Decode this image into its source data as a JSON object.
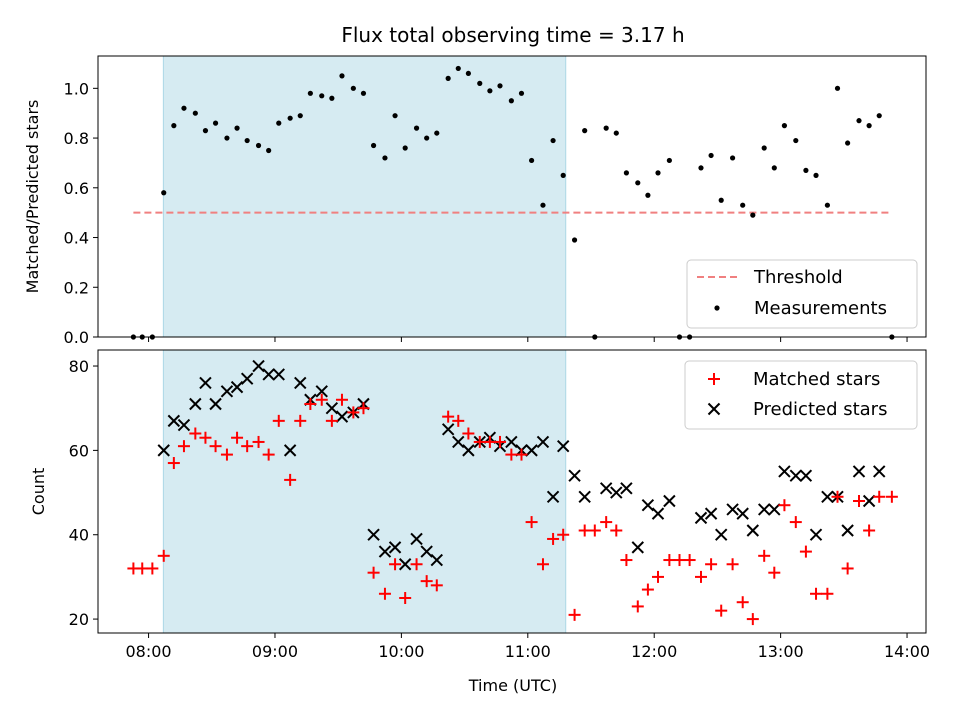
{
  "title": "Flux total observing time = 3.17 h",
  "colors": {
    "shade": "#add8e6",
    "threshold": "#f08080",
    "matched": "#ff0000",
    "predicted": "#000000",
    "measurements": "#000000"
  },
  "chart_data": [
    {
      "type": "scatter",
      "ylabel": "Matched/Predicted stars",
      "xlim": [
        7.6,
        14.15
      ],
      "ylim": [
        0.0,
        1.13
      ],
      "yticks": [
        0.0,
        0.2,
        0.4,
        0.6,
        0.8,
        1.0
      ],
      "ytick_labels": [
        "0.0",
        "0.2",
        "0.4",
        "0.6",
        "0.8",
        "1.0"
      ],
      "shaded_x": [
        8.117,
        11.3
      ],
      "threshold": {
        "name": "Threshold",
        "value": 0.5,
        "x": [
          7.88,
          13.88
        ],
        "style": "dashed"
      },
      "legend_position": "lower right",
      "series": [
        {
          "name": "Measurements",
          "marker": "dot",
          "points": [
            [
              7.88,
              0
            ],
            [
              7.95,
              0
            ],
            [
              8.03,
              0
            ],
            [
              8.12,
              0.58
            ],
            [
              8.2,
              0.85
            ],
            [
              8.28,
              0.92
            ],
            [
              8.37,
              0.9
            ],
            [
              8.45,
              0.83
            ],
            [
              8.53,
              0.86
            ],
            [
              8.62,
              0.8
            ],
            [
              8.7,
              0.84
            ],
            [
              8.78,
              0.79
            ],
            [
              8.87,
              0.77
            ],
            [
              8.95,
              0.75
            ],
            [
              9.03,
              0.86
            ],
            [
              9.12,
              0.88
            ],
            [
              9.2,
              0.89
            ],
            [
              9.28,
              0.98
            ],
            [
              9.37,
              0.97
            ],
            [
              9.45,
              0.96
            ],
            [
              9.53,
              1.05
            ],
            [
              9.62,
              1.0
            ],
            [
              9.7,
              0.98
            ],
            [
              9.78,
              0.77
            ],
            [
              9.87,
              0.72
            ],
            [
              9.95,
              0.89
            ],
            [
              10.03,
              0.76
            ],
            [
              10.12,
              0.84
            ],
            [
              10.2,
              0.8
            ],
            [
              10.28,
              0.82
            ],
            [
              10.37,
              1.04
            ],
            [
              10.45,
              1.08
            ],
            [
              10.53,
              1.06
            ],
            [
              10.62,
              1.02
            ],
            [
              10.7,
              0.99
            ],
            [
              10.78,
              1.01
            ],
            [
              10.87,
              0.95
            ],
            [
              10.95,
              0.98
            ],
            [
              11.03,
              0.71
            ],
            [
              11.12,
              0.53
            ],
            [
              11.2,
              0.79
            ],
            [
              11.28,
              0.65
            ],
            [
              11.37,
              0.39
            ],
            [
              11.45,
              0.83
            ],
            [
              11.53,
              0
            ],
            [
              11.62,
              0.84
            ],
            [
              11.7,
              0.82
            ],
            [
              11.78,
              0.66
            ],
            [
              11.87,
              0.62
            ],
            [
              11.95,
              0.57
            ],
            [
              12.03,
              0.66
            ],
            [
              12.12,
              0.71
            ],
            [
              12.2,
              0
            ],
            [
              12.28,
              0
            ],
            [
              12.37,
              0.68
            ],
            [
              12.45,
              0.73
            ],
            [
              12.53,
              0.55
            ],
            [
              12.62,
              0.72
            ],
            [
              12.7,
              0.53
            ],
            [
              12.78,
              0.49
            ],
            [
              12.87,
              0.76
            ],
            [
              12.95,
              0.68
            ],
            [
              13.03,
              0.85
            ],
            [
              13.12,
              0.79
            ],
            [
              13.2,
              0.67
            ],
            [
              13.28,
              0.65
            ],
            [
              13.37,
              0.53
            ],
            [
              13.45,
              1.0
            ],
            [
              13.53,
              0.78
            ],
            [
              13.62,
              0.87
            ],
            [
              13.7,
              0.85
            ],
            [
              13.78,
              0.89
            ],
            [
              13.88,
              0
            ]
          ]
        }
      ]
    },
    {
      "type": "scatter",
      "xlabel": "Time (UTC)",
      "ylabel": "Count",
      "xlim": [
        7.6,
        14.15
      ],
      "ylim": [
        16.7,
        83.8
      ],
      "yticks": [
        20,
        40,
        60,
        80
      ],
      "ytick_labels": [
        "20",
        "40",
        "60",
        "80"
      ],
      "xticks": [
        8,
        9,
        10,
        11,
        12,
        13,
        14
      ],
      "xtick_labels": [
        "08:00",
        "09:00",
        "10:00",
        "11:00",
        "12:00",
        "13:00",
        "14:00"
      ],
      "shaded_x": [
        8.117,
        11.3
      ],
      "legend_position": "upper right",
      "series": [
        {
          "name": "Matched stars",
          "marker": "plus",
          "points": [
            [
              7.88,
              32
            ],
            [
              7.95,
              32
            ],
            [
              8.03,
              32
            ],
            [
              8.12,
              35
            ],
            [
              8.2,
              57
            ],
            [
              8.28,
              61
            ],
            [
              8.37,
              64
            ],
            [
              8.45,
              63
            ],
            [
              8.53,
              61
            ],
            [
              8.62,
              59
            ],
            [
              8.7,
              63
            ],
            [
              8.78,
              61
            ],
            [
              8.87,
              62
            ],
            [
              8.95,
              59
            ],
            [
              9.03,
              67
            ],
            [
              9.12,
              53
            ],
            [
              9.2,
              67
            ],
            [
              9.28,
              71
            ],
            [
              9.37,
              72
            ],
            [
              9.45,
              67
            ],
            [
              9.53,
              72
            ],
            [
              9.62,
              69
            ],
            [
              9.7,
              70
            ],
            [
              9.78,
              31
            ],
            [
              9.87,
              26
            ],
            [
              9.95,
              33
            ],
            [
              10.03,
              25
            ],
            [
              10.12,
              33
            ],
            [
              10.2,
              29
            ],
            [
              10.28,
              28
            ],
            [
              10.37,
              68
            ],
            [
              10.45,
              67
            ],
            [
              10.53,
              64
            ],
            [
              10.62,
              62
            ],
            [
              10.7,
              62
            ],
            [
              10.78,
              62
            ],
            [
              10.87,
              59
            ],
            [
              10.95,
              59
            ],
            [
              11.03,
              43
            ],
            [
              11.12,
              33
            ],
            [
              11.2,
              39
            ],
            [
              11.28,
              40
            ],
            [
              11.37,
              21
            ],
            [
              11.45,
              41
            ],
            [
              11.53,
              41
            ],
            [
              11.62,
              43
            ],
            [
              11.7,
              41
            ],
            [
              11.78,
              34
            ],
            [
              11.87,
              23
            ],
            [
              11.95,
              27
            ],
            [
              12.03,
              30
            ],
            [
              12.12,
              34
            ],
            [
              12.2,
              34
            ],
            [
              12.28,
              34
            ],
            [
              12.37,
              30
            ],
            [
              12.45,
              33
            ],
            [
              12.53,
              22
            ],
            [
              12.62,
              33
            ],
            [
              12.7,
              24
            ],
            [
              12.78,
              20
            ],
            [
              12.87,
              35
            ],
            [
              12.95,
              31
            ],
            [
              13.03,
              47
            ],
            [
              13.12,
              43
            ],
            [
              13.2,
              36
            ],
            [
              13.28,
              26
            ],
            [
              13.37,
              26
            ],
            [
              13.45,
              49
            ],
            [
              13.53,
              32
            ],
            [
              13.62,
              48
            ],
            [
              13.7,
              41
            ],
            [
              13.78,
              49
            ],
            [
              13.88,
              49
            ]
          ]
        },
        {
          "name": "Predicted stars",
          "marker": "x",
          "points": [
            [
              8.12,
              60
            ],
            [
              8.2,
              67
            ],
            [
              8.28,
              66
            ],
            [
              8.37,
              71
            ],
            [
              8.45,
              76
            ],
            [
              8.53,
              71
            ],
            [
              8.62,
              74
            ],
            [
              8.7,
              75
            ],
            [
              8.78,
              77
            ],
            [
              8.87,
              80
            ],
            [
              8.95,
              78
            ],
            [
              9.03,
              78
            ],
            [
              9.12,
              60
            ],
            [
              9.2,
              76
            ],
            [
              9.28,
              72
            ],
            [
              9.37,
              74
            ],
            [
              9.45,
              70
            ],
            [
              9.53,
              68
            ],
            [
              9.62,
              69
            ],
            [
              9.7,
              71
            ],
            [
              9.78,
              40
            ],
            [
              9.87,
              36
            ],
            [
              9.95,
              37
            ],
            [
              10.03,
              33
            ],
            [
              10.12,
              39
            ],
            [
              10.2,
              36
            ],
            [
              10.28,
              34
            ],
            [
              10.37,
              65
            ],
            [
              10.45,
              62
            ],
            [
              10.53,
              60
            ],
            [
              10.62,
              62
            ],
            [
              10.7,
              63
            ],
            [
              10.78,
              61
            ],
            [
              10.87,
              62
            ],
            [
              10.95,
              60
            ],
            [
              11.03,
              60
            ],
            [
              11.12,
              62
            ],
            [
              11.2,
              49
            ],
            [
              11.28,
              61
            ],
            [
              11.37,
              54
            ],
            [
              11.45,
              49
            ],
            [
              11.62,
              51
            ],
            [
              11.7,
              50
            ],
            [
              11.78,
              51
            ],
            [
              11.87,
              37
            ],
            [
              11.95,
              47
            ],
            [
              12.03,
              45
            ],
            [
              12.12,
              48
            ],
            [
              12.37,
              44
            ],
            [
              12.45,
              45
            ],
            [
              12.53,
              40
            ],
            [
              12.62,
              46
            ],
            [
              12.7,
              45
            ],
            [
              12.78,
              41
            ],
            [
              12.87,
              46
            ],
            [
              12.95,
              46
            ],
            [
              13.03,
              55
            ],
            [
              13.12,
              54
            ],
            [
              13.2,
              54
            ],
            [
              13.28,
              40
            ],
            [
              13.37,
              49
            ],
            [
              13.45,
              49
            ],
            [
              13.53,
              41
            ],
            [
              13.62,
              55
            ],
            [
              13.7,
              48
            ],
            [
              13.78,
              55
            ]
          ]
        }
      ]
    }
  ]
}
